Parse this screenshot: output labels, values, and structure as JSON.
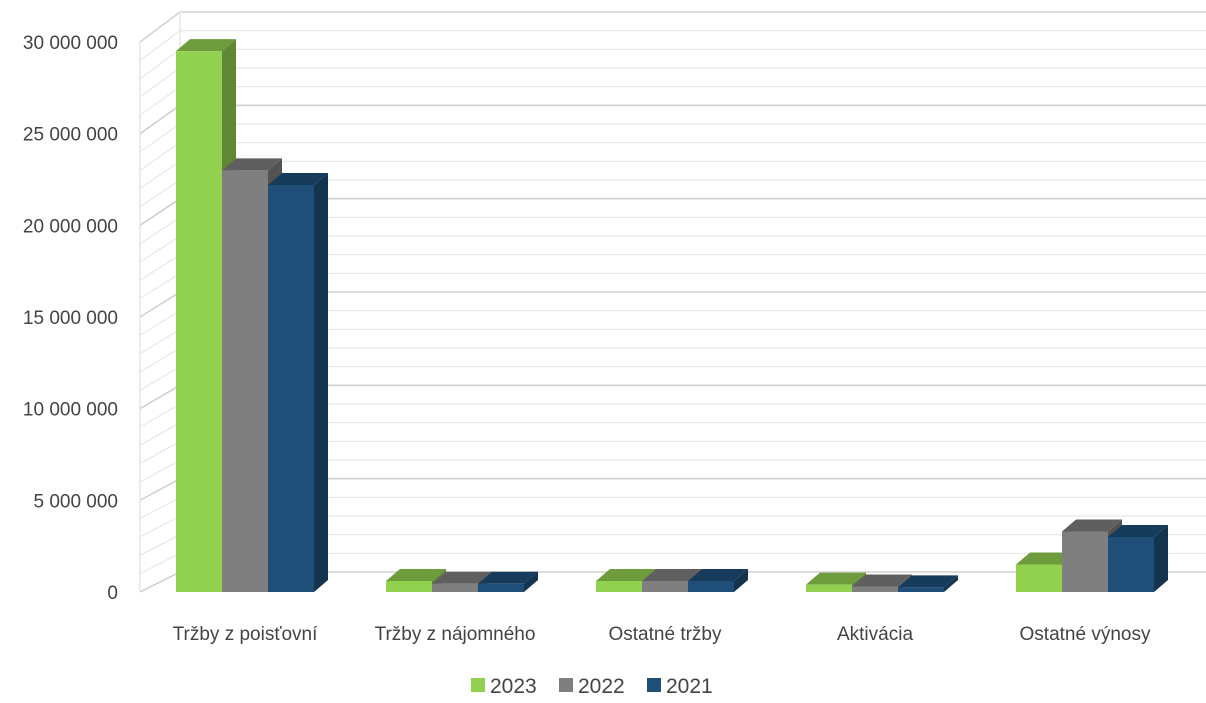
{
  "chart_data": {
    "type": "bar",
    "style": "3d-clustered-column",
    "title": "",
    "xlabel": "",
    "ylabel": "",
    "categories": [
      "Tržby z poisťovní",
      "Tržby z nájomného",
      "Ostatné tržby",
      "Aktivácia",
      "Ostatné výnosy"
    ],
    "series": [
      {
        "name": "2023",
        "color": "#92d050",
        "values": [
          29500000,
          600000,
          600000,
          400000,
          1500000
        ]
      },
      {
        "name": "2022",
        "color": "#7f7f7f",
        "values": [
          23000000,
          450000,
          600000,
          300000,
          3300000
        ]
      },
      {
        "name": "2021",
        "color": "#1f4e79",
        "values": [
          22200000,
          450000,
          600000,
          250000,
          3000000
        ]
      }
    ],
    "y_ticks": [
      "0",
      "5 000 000",
      "10 000 000",
      "15 000 000",
      "20 000 000",
      "25 000 000",
      "30 000 000"
    ],
    "ylim": [
      0,
      30000000
    ],
    "grid": true,
    "legend_position": "bottom"
  }
}
